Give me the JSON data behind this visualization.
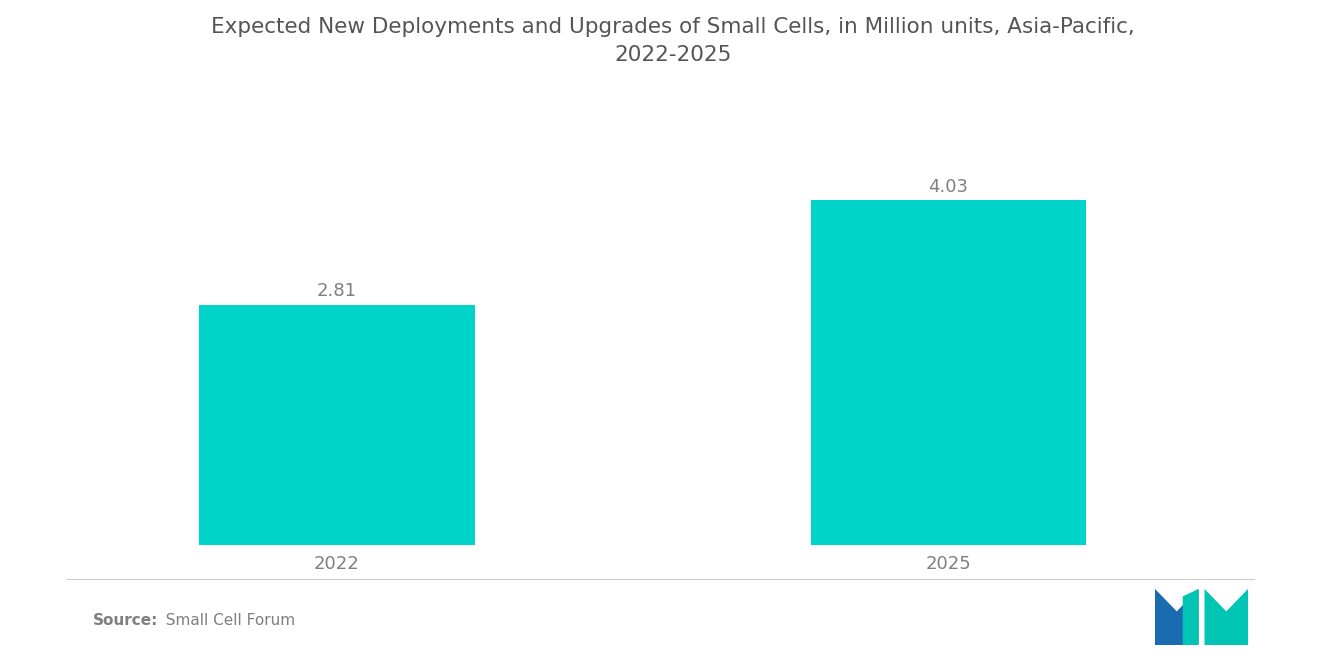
{
  "title": "Expected New Deployments and Upgrades of Small Cells, in Million units, Asia-Pacific,\n2022-2025",
  "categories": [
    "2022",
    "2025"
  ],
  "values": [
    2.81,
    4.03
  ],
  "bar_color": "#00D4C8",
  "value_labels": [
    "2.81",
    "4.03"
  ],
  "title_fontsize": 15.5,
  "label_fontsize": 13,
  "tick_fontsize": 13,
  "source_bold": "Source:",
  "source_rest": "  Small Cell Forum",
  "source_fontsize": 11,
  "ylim": [
    0,
    5.2
  ],
  "background_color": "#ffffff",
  "text_color": "#7f7f7f",
  "title_color": "#555555",
  "bar_positions": [
    1,
    3
  ],
  "bar_width": 0.9,
  "xlim": [
    0.2,
    4.0
  ]
}
